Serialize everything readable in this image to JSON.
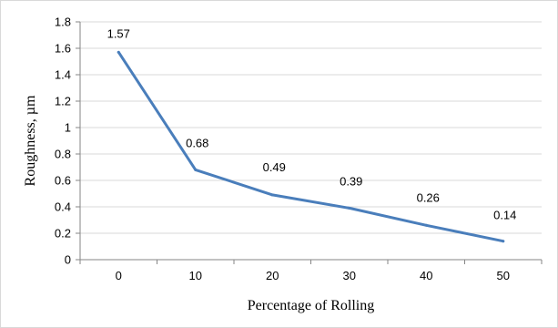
{
  "chart_data": {
    "type": "line",
    "x": [
      0,
      10,
      20,
      30,
      40,
      50
    ],
    "values": [
      1.57,
      0.68,
      0.49,
      0.39,
      0.26,
      0.14
    ],
    "data_labels": [
      "1.57",
      "0.68",
      "0.49",
      "0.39",
      "0.26",
      "0.14"
    ],
    "x_tick_labels": [
      "0",
      "10",
      "20",
      "30",
      "40",
      "50"
    ],
    "y_tick_labels": [
      "0",
      "0.2",
      "0.4",
      "0.6",
      "0.8",
      "1",
      "1.2",
      "1.4",
      "1.6",
      "1.8"
    ],
    "xlabel": "Percentage of Rolling",
    "ylabel": "Roughness, µm",
    "ylim": [
      0,
      1.8
    ],
    "y_step": 0.2,
    "grid": "horizontal",
    "legend": "none",
    "line_color": "#4a7ebb",
    "grid_color": "#d9d9d9",
    "axis_color": "#868686"
  }
}
